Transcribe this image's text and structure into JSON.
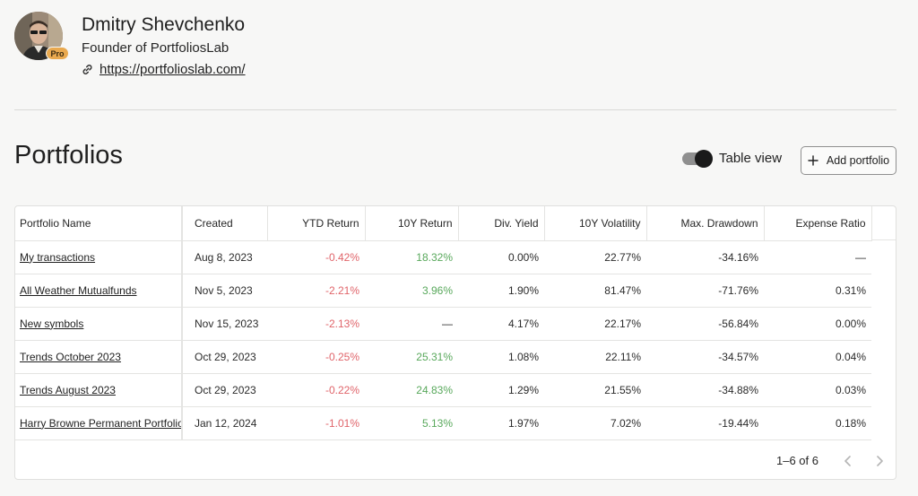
{
  "profile": {
    "name": "Dmitry Shevchenko",
    "role": "Founder of PortfoliosLab",
    "link": "https://portfolioslab.com/",
    "badge": "Pro"
  },
  "page": {
    "title": "Portfolios",
    "table_view_label": "Table view",
    "table_view_on": true,
    "add_portfolio_label": "Add portfolio"
  },
  "table": {
    "columns": [
      "Portfolio Name",
      "Created",
      "YTD Return",
      "10Y Return",
      "Div. Yield",
      "10Y Volatility",
      "Max. Drawdown",
      "Expense Ratio"
    ],
    "rows": [
      {
        "name": "My transactions",
        "created": "Aug 8, 2023",
        "ytd": "-0.42%",
        "ten_y": "18.32%",
        "div_yield": "0.00%",
        "volatility": "22.77%",
        "drawdown": "-34.16%",
        "expense": "—"
      },
      {
        "name": "All Weather Mutualfunds",
        "created": "Nov 5, 2023",
        "ytd": "-2.21%",
        "ten_y": "3.96%",
        "div_yield": "1.90%",
        "volatility": "81.47%",
        "drawdown": "-71.76%",
        "expense": "0.31%"
      },
      {
        "name": "New symbols",
        "created": "Nov 15, 2023",
        "ytd": "-2.13%",
        "ten_y": "—",
        "div_yield": "4.17%",
        "volatility": "22.17%",
        "drawdown": "-56.84%",
        "expense": "0.00%"
      },
      {
        "name": "Trends October 2023",
        "created": "Oct 29, 2023",
        "ytd": "-0.25%",
        "ten_y": "25.31%",
        "div_yield": "1.08%",
        "volatility": "22.11%",
        "drawdown": "-34.57%",
        "expense": "0.04%"
      },
      {
        "name": "Trends August 2023",
        "created": "Oct 29, 2023",
        "ytd": "-0.22%",
        "ten_y": "24.83%",
        "div_yield": "1.29%",
        "volatility": "21.55%",
        "drawdown": "-34.88%",
        "expense": "0.03%"
      },
      {
        "name": "Harry Browne Permanent Portfolio",
        "created": "Jan 12, 2024",
        "ytd": "-1.01%",
        "ten_y": "5.13%",
        "div_yield": "1.97%",
        "volatility": "7.02%",
        "drawdown": "-19.44%",
        "expense": "0.18%"
      }
    ]
  },
  "pagination": {
    "text": "1–6 of 6"
  },
  "colors": {
    "negative": "#e0646a",
    "positive": "#58a85b",
    "badge": "#e9a94f"
  },
  "icons": {
    "link": "link-icon",
    "add": "plus-icon",
    "prev": "chevron-left-icon",
    "next": "chevron-right-icon"
  }
}
